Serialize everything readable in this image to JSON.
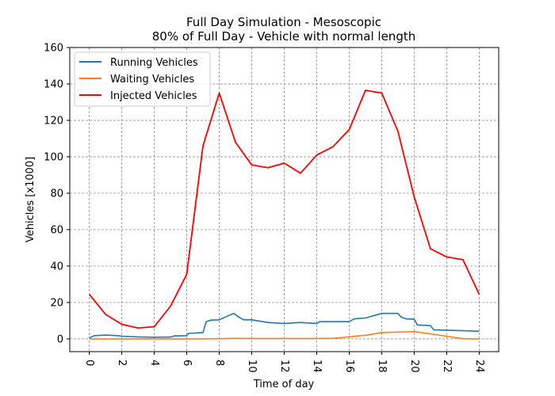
{
  "chart_data": {
    "type": "line",
    "title": "Full Day Simulation - Mesoscopic",
    "subtitle": "80% of Full Day - Vehicle with normal length",
    "xlabel": "Time of day",
    "ylabel": "Vehicles [x1000]",
    "xlim": [
      -1.2,
      25.2
    ],
    "ylim": [
      -7,
      160
    ],
    "xticks": [
      0,
      2,
      4,
      6,
      8,
      10,
      12,
      14,
      16,
      18,
      20,
      22,
      24
    ],
    "yticks": [
      0,
      20,
      40,
      60,
      80,
      100,
      120,
      140,
      160
    ],
    "grid": true,
    "legend_position": "top-left",
    "series": [
      {
        "name": "Running Vehicles",
        "color": "#1f77b4",
        "x": [
          0,
          0.3,
          1,
          1.8,
          2,
          3,
          4,
          5,
          5.2,
          6,
          6.1,
          7,
          7.2,
          7.5,
          8,
          8.7,
          8.9,
          9.2,
          9.5,
          10,
          11,
          12,
          13,
          14,
          14.2,
          15,
          16,
          16.3,
          17,
          18,
          18.5,
          19,
          19.2,
          19.5,
          20,
          20.2,
          21,
          21.2,
          22,
          23,
          24
        ],
        "y": [
          0.5,
          1.8,
          2.1,
          1.8,
          1.5,
          1.1,
          0.9,
          1.0,
          1.6,
          1.8,
          3.0,
          3.5,
          9.5,
          10.3,
          10.5,
          13.3,
          14.0,
          12.0,
          10.5,
          10.5,
          9.0,
          8.5,
          9.0,
          8.5,
          9.5,
          9.5,
          9.5,
          11.0,
          11.5,
          14.0,
          14.0,
          14.0,
          12.0,
          11.0,
          10.8,
          7.6,
          7.3,
          5.0,
          4.8,
          4.5,
          4.2
        ]
      },
      {
        "name": "Waiting Vehicles",
        "color": "#ff7f0e",
        "x": [
          0,
          2,
          4,
          6,
          8,
          9,
          10,
          12,
          14,
          15,
          17,
          18,
          20,
          22,
          23,
          24
        ],
        "y": [
          0,
          0,
          0,
          0,
          0.1,
          0.3,
          0.2,
          0.2,
          0.2,
          0.3,
          2.0,
          3.5,
          4.0,
          1.5,
          0.1,
          0
        ]
      },
      {
        "name": "Injected Vehicles",
        "color": "#ff0000",
        "x": [
          0,
          1,
          2,
          3,
          4,
          5,
          6,
          7,
          8,
          9,
          10,
          11,
          12,
          13,
          14,
          15,
          16,
          17,
          18,
          19,
          20,
          21,
          22,
          23,
          24
        ],
        "y": [
          24.5,
          13.5,
          8,
          6,
          6.7,
          18,
          35.5,
          106,
          135,
          108,
          95.5,
          94,
          96.5,
          91,
          101,
          105.5,
          115,
          136.5,
          135,
          114,
          78,
          49.5,
          45,
          43.5,
          24.5
        ]
      }
    ]
  }
}
